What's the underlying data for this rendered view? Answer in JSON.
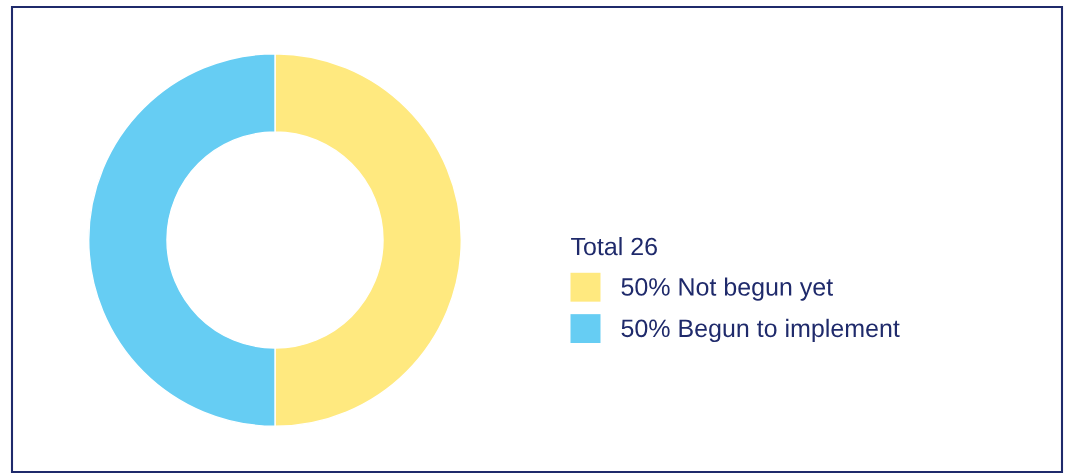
{
  "chart_data": {
    "type": "donut",
    "legend_title": "Total 26",
    "categories": [
      "Not begun yet",
      "Begun to implement"
    ],
    "values": [
      50,
      50
    ],
    "value_labels": [
      "50%",
      "50%"
    ],
    "colors": [
      "#ffe97f",
      "#66cdf3"
    ],
    "legend": "right"
  }
}
